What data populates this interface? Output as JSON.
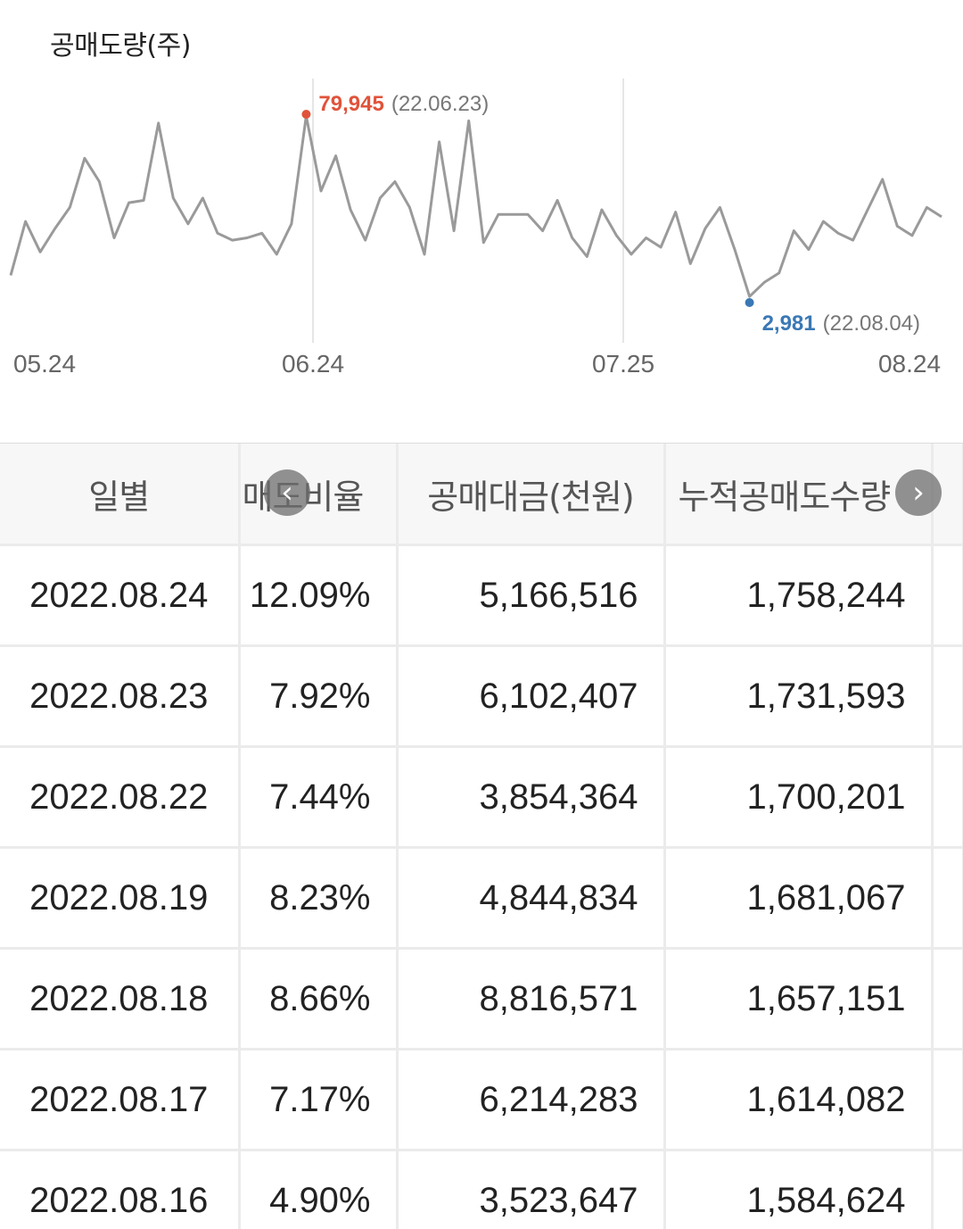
{
  "chart_data": {
    "type": "line",
    "title": "공매도량(주)",
    "x_ticks": [
      "05.24",
      "06.24",
      "07.25",
      "08.24"
    ],
    "ylim": [
      0,
      100000
    ],
    "series": [
      {
        "values": [
          12000,
          35000,
          22000,
          32000,
          41000,
          62000,
          52000,
          28000,
          43000,
          44000,
          77000,
          45000,
          34000,
          45000,
          30000,
          27000,
          28000,
          30000,
          21000,
          34000,
          79945,
          48000,
          63000,
          40000,
          27000,
          45000,
          52000,
          41000,
          21000,
          69000,
          31000,
          78000,
          26000,
          38000,
          38000,
          38000,
          31000,
          44000,
          28000,
          20000,
          40000,
          29000,
          21000,
          28000,
          24000,
          39000,
          17000,
          32000,
          41000,
          23000,
          2981,
          9000,
          13000,
          31000,
          23000,
          35000,
          30000,
          27000,
          40000,
          53000,
          33000,
          29000,
          41000,
          37000
        ]
      }
    ],
    "annotations": [
      {
        "kind": "max",
        "index": 20,
        "value": "79,945",
        "date": "(22.06.23)",
        "color": "#e0533a"
      },
      {
        "kind": "min",
        "index": 50,
        "value": "2,981",
        "date": "(22.08.04)",
        "color": "#3a78b5"
      }
    ],
    "colors": {
      "line": "#9a9a9a",
      "grid": "#e6e6e6"
    }
  },
  "table": {
    "headers": [
      "일별",
      "매도비율",
      "공매대금(천원)",
      "누적공매도수량"
    ],
    "rows": [
      [
        "2022.08.24",
        "12.09%",
        "5,166,516",
        "1,758,244"
      ],
      [
        "2022.08.23",
        "7.92%",
        "6,102,407",
        "1,731,593"
      ],
      [
        "2022.08.22",
        "7.44%",
        "3,854,364",
        "1,700,201"
      ],
      [
        "2022.08.19",
        "8.23%",
        "4,844,834",
        "1,681,067"
      ],
      [
        "2022.08.18",
        "8.66%",
        "8,816,571",
        "1,657,151"
      ],
      [
        "2022.08.17",
        "7.17%",
        "6,214,283",
        "1,614,082"
      ],
      [
        "2022.08.16",
        "4.90%",
        "3,523,647",
        "1,584,624"
      ]
    ]
  },
  "controls": {
    "scroll_left_icon": "chevron-left-icon",
    "scroll_right_icon": "chevron-right-icon",
    "scroll_left_glyph": "‹",
    "scroll_right_glyph": "›"
  }
}
